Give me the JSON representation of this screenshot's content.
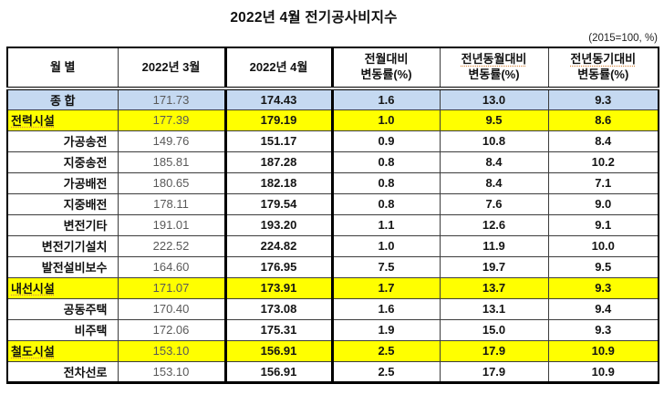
{
  "title": "2022년 4월 전기공사비지수",
  "unit_note": "(2015=100, %)",
  "table": {
    "headers": [
      {
        "line1": "월 별",
        "line2": ""
      },
      {
        "line1": "2022년 3월",
        "line2": ""
      },
      {
        "line1": "2022년 4월",
        "line2": ""
      },
      {
        "line1": "전월대비",
        "line2": "변동률(%)"
      },
      {
        "line1": "전년동월대비",
        "line2": "변동률(%)"
      },
      {
        "line1": "전년동기대비",
        "line2": "변동률(%)"
      }
    ],
    "rows": [
      {
        "name": "종 합",
        "type": "total",
        "mar": "171.73",
        "apr": "174.43",
        "mom": "1.6",
        "yoy_month": "13.0",
        "yoy_period": "9.3"
      },
      {
        "name": "전력시설",
        "type": "category",
        "mar": "177.39",
        "apr": "179.19",
        "mom": "1.0",
        "yoy_month": "9.5",
        "yoy_period": "8.6"
      },
      {
        "name": "가공송전",
        "type": "sub",
        "mar": "149.76",
        "apr": "151.17",
        "mom": "0.9",
        "yoy_month": "10.8",
        "yoy_period": "8.4"
      },
      {
        "name": "지중송전",
        "type": "sub",
        "mar": "185.81",
        "apr": "187.28",
        "mom": "0.8",
        "yoy_month": "8.4",
        "yoy_period": "10.2"
      },
      {
        "name": "가공배전",
        "type": "sub",
        "mar": "180.65",
        "apr": "182.18",
        "mom": "0.8",
        "yoy_month": "8.4",
        "yoy_period": "7.1"
      },
      {
        "name": "지중배전",
        "type": "sub",
        "mar": "178.11",
        "apr": "179.54",
        "mom": "0.8",
        "yoy_month": "7.6",
        "yoy_period": "9.0"
      },
      {
        "name": "변전기타",
        "type": "sub",
        "mar": "191.01",
        "apr": "193.20",
        "mom": "1.1",
        "yoy_month": "12.6",
        "yoy_period": "9.1"
      },
      {
        "name": "변전기기설치",
        "type": "sub",
        "mar": "222.52",
        "apr": "224.82",
        "mom": "1.0",
        "yoy_month": "11.9",
        "yoy_period": "10.0"
      },
      {
        "name": "발전설비보수",
        "type": "sub",
        "mar": "164.60",
        "apr": "176.95",
        "mom": "7.5",
        "yoy_month": "19.7",
        "yoy_period": "9.5"
      },
      {
        "name": "내선시설",
        "type": "category",
        "mar": "171.07",
        "apr": "173.91",
        "mom": "1.7",
        "yoy_month": "13.7",
        "yoy_period": "9.3"
      },
      {
        "name": "공동주택",
        "type": "sub",
        "mar": "170.40",
        "apr": "173.08",
        "mom": "1.6",
        "yoy_month": "13.1",
        "yoy_period": "9.4"
      },
      {
        "name": "비주택",
        "type": "sub",
        "mar": "172.06",
        "apr": "175.31",
        "mom": "1.9",
        "yoy_month": "15.0",
        "yoy_period": "9.3"
      },
      {
        "name": "철도시설",
        "type": "category",
        "mar": "153.10",
        "apr": "156.91",
        "mom": "2.5",
        "yoy_month": "17.9",
        "yoy_period": "10.9"
      },
      {
        "name": "전차선로",
        "type": "sub",
        "mar": "153.10",
        "apr": "156.91",
        "mom": "2.5",
        "yoy_month": "17.9",
        "yoy_period": "10.9"
      }
    ],
    "colors": {
      "total_row_bg": "#C5D9F1",
      "category_row_bg": "#FFFF00",
      "march_value_text": "#595959",
      "squiggle_underline": "#D98E4A"
    }
  }
}
